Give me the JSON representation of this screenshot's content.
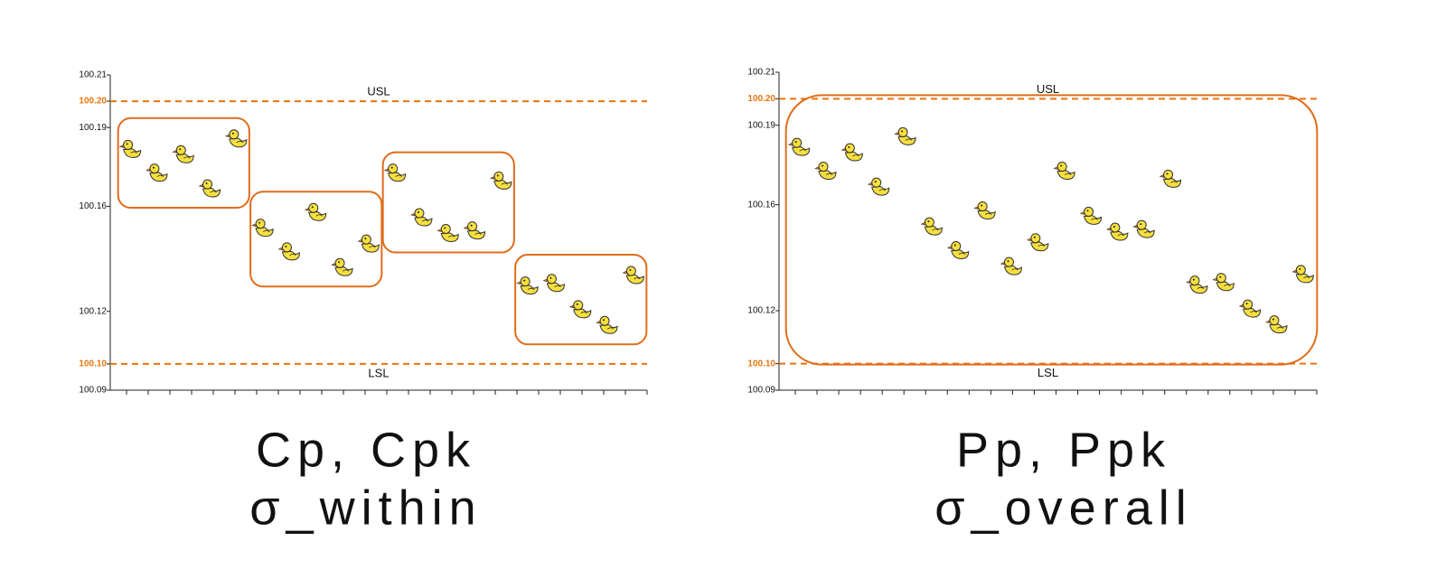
{
  "chart_data": [
    {
      "type": "scatter",
      "marker": "duck",
      "subgroup_size": 5,
      "caption": [
        "Cp, Cpk",
        "σ_within"
      ],
      "values": [
        100.182,
        100.173,
        100.18,
        100.167,
        100.186,
        100.152,
        100.143,
        100.158,
        100.137,
        100.146,
        100.173,
        100.156,
        100.15,
        100.151,
        100.17,
        100.13,
        100.131,
        100.121,
        100.115,
        100.134
      ],
      "ylim": [
        100.09,
        100.21
      ],
      "yticks": [
        100.09,
        {
          "value": 100.1,
          "label": "100.10"
        },
        100.12,
        100.16,
        100.19,
        {
          "value": 100.2,
          "label": "100.20"
        },
        100.21
      ],
      "usl": 100.2,
      "usl_label": "USL",
      "lsl": 100.1,
      "lsl_label": "LSL",
      "spec_color": "#e8740f",
      "box_color": "#e06c1a",
      "grid": false
    },
    {
      "type": "scatter",
      "marker": "duck",
      "subgroup_size": 20,
      "caption": [
        "Pp, Ppk",
        "σ_overall"
      ],
      "values": [
        100.182,
        100.173,
        100.18,
        100.167,
        100.186,
        100.152,
        100.143,
        100.158,
        100.137,
        100.146,
        100.173,
        100.156,
        100.15,
        100.151,
        100.17,
        100.13,
        100.131,
        100.121,
        100.115,
        100.134
      ],
      "ylim": [
        100.09,
        100.21
      ],
      "yticks": [
        100.09,
        {
          "value": 100.1,
          "label": "100.10"
        },
        100.12,
        100.16,
        100.19,
        {
          "value": 100.2,
          "label": "100.20"
        },
        100.21
      ],
      "usl": 100.2,
      "usl_label": "USL",
      "lsl": 100.1,
      "lsl_label": "LSL",
      "spec_color": "#e8740f",
      "box_color": "#e06c1a",
      "grid": false
    }
  ]
}
